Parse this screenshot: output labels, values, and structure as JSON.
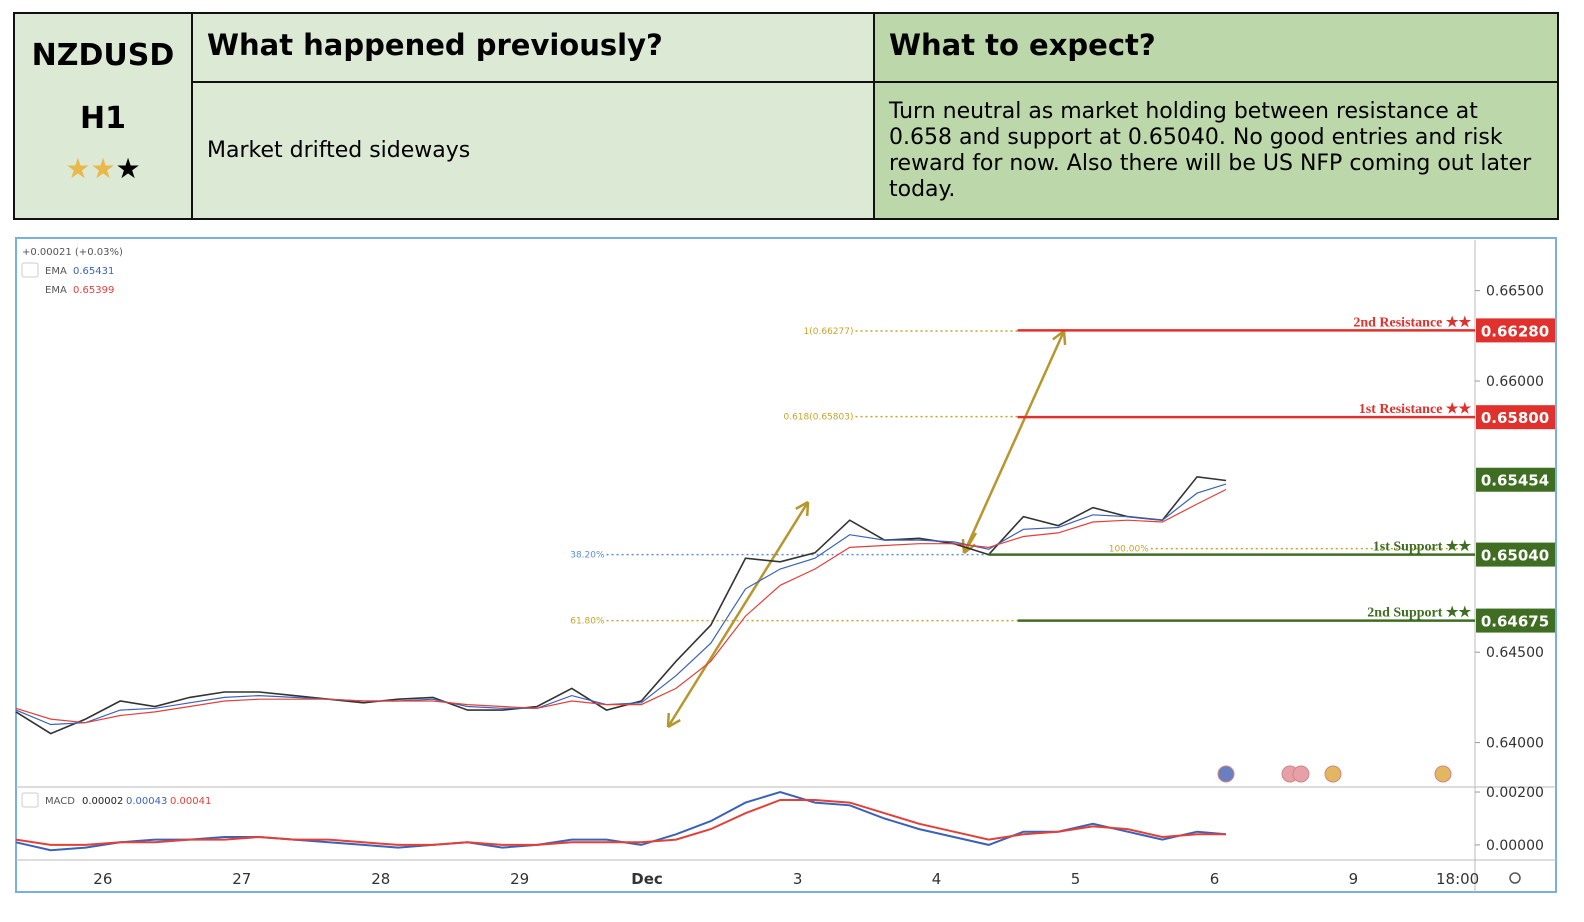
{
  "header": {
    "symbol": "NZDUSD",
    "timeframe": "H1",
    "rating": {
      "value": 2,
      "max": 3
    }
  },
  "table": {
    "columns": [
      "What happened previously?",
      "What to expect?"
    ],
    "cells": [
      "Market drifted sideways",
      "Turn neutral as market holding between resistance at 0.658 and support at 0.65040. No good entries and risk reward for now. Also there will be US NFP coming out later today."
    ]
  },
  "chart_data": [
    {
      "type": "line",
      "change_label": "+0.00021 (+0.03%)",
      "x": [
        0,
        6,
        12,
        18,
        24,
        30,
        36,
        42,
        48,
        54,
        60,
        66,
        72,
        78,
        84,
        90,
        96,
        102,
        108,
        114,
        120,
        126,
        132,
        138,
        144,
        150,
        156,
        162,
        168,
        174,
        180,
        186,
        192,
        198,
        204,
        209
      ],
      "xlim": [
        0,
        252
      ],
      "xticks": [
        {
          "value": 15,
          "label": "26"
        },
        {
          "value": 39,
          "label": "27"
        },
        {
          "value": 63,
          "label": "28"
        },
        {
          "value": 87,
          "label": "29"
        },
        {
          "value": 109,
          "label": "Dec"
        },
        {
          "value": 135,
          "label": "3"
        },
        {
          "value": 159,
          "label": "4"
        },
        {
          "value": 183,
          "label": "5"
        },
        {
          "value": 207,
          "label": "6"
        },
        {
          "value": 231,
          "label": "9"
        },
        {
          "value": 249,
          "label": "18:00"
        }
      ],
      "ylim": [
        0.6376,
        0.6678
      ],
      "yticks": [
        {
          "value": 0.64,
          "label": "0.64000"
        },
        {
          "value": 0.645,
          "label": "0.64500"
        },
        {
          "value": 0.66,
          "label": "0.66000"
        },
        {
          "value": 0.665,
          "label": "0.66500"
        }
      ],
      "series": [
        {
          "color": "#333333",
          "values": [
            0.6417,
            0.6405,
            0.6413,
            0.6423,
            0.642,
            0.6425,
            0.6428,
            0.6428,
            0.6426,
            0.6424,
            0.6422,
            0.6424,
            0.6425,
            0.6418,
            0.6418,
            0.642,
            0.643,
            0.6418,
            0.6423,
            0.6445,
            0.6465,
            0.6502,
            0.65,
            0.6505,
            0.6523,
            0.6512,
            0.6513,
            0.651,
            0.6504,
            0.6525,
            0.652,
            0.653,
            0.6525,
            0.6523,
            0.6547,
            0.6545
          ]
        },
        {
          "name": "EMA",
          "last": 0.65431,
          "color": "#3a63b8",
          "values": [
            0.6418,
            0.641,
            0.6411,
            0.6418,
            0.6419,
            0.6422,
            0.6425,
            0.6426,
            0.6425,
            0.6424,
            0.6423,
            0.6423,
            0.6424,
            0.642,
            0.6419,
            0.6419,
            0.6426,
            0.6421,
            0.6422,
            0.6437,
            0.6455,
            0.6485,
            0.6496,
            0.6502,
            0.6515,
            0.6512,
            0.6512,
            0.6511,
            0.6507,
            0.6518,
            0.6519,
            0.6526,
            0.6525,
            0.6523,
            0.6538,
            0.6543
          ]
        },
        {
          "name": "EMA",
          "last": 0.65399,
          "color": "#e3403a",
          "values": [
            0.6419,
            0.6413,
            0.6411,
            0.6415,
            0.6417,
            0.642,
            0.6423,
            0.6424,
            0.6424,
            0.6424,
            0.6423,
            0.6423,
            0.6423,
            0.6421,
            0.642,
            0.6419,
            0.6423,
            0.6421,
            0.6421,
            0.643,
            0.6445,
            0.647,
            0.6487,
            0.6496,
            0.6508,
            0.6509,
            0.651,
            0.651,
            0.6508,
            0.6514,
            0.6516,
            0.6522,
            0.6523,
            0.6522,
            0.6532,
            0.654
          ]
        }
      ],
      "last_price": 0.65454,
      "last_price_color": "#3f6e22",
      "levels": [
        {
          "name": "2nd Resistance ★★",
          "value": 0.6628,
          "value_label": "0.66280",
          "color": "#e0312d",
          "from": 173
        },
        {
          "name": "1st Resistance ★★",
          "value": 0.658,
          "value_label": "0.65800",
          "color": "#e0312d",
          "from": 173
        },
        {
          "name": "1st Support ★★",
          "value": 0.6504,
          "value_label": "0.65040",
          "color": "#3f6e22",
          "from": 168
        },
        {
          "name": "2nd Support ★★",
          "value": 0.64675,
          "color": "#3f6e22",
          "from": 173
        }
      ],
      "fib": [
        {
          "label": "1(0.66277)",
          "value": 0.66277,
          "color": "#c9a227",
          "from": 145,
          "to": 173
        },
        {
          "label": "0.618(0.65803)",
          "value": 0.65803,
          "color": "#c9a227",
          "from": 145,
          "to": 173
        },
        {
          "label": "38.20%",
          "value": 0.6504,
          "color": "#5b8fd1",
          "from": 102,
          "to": 168
        },
        {
          "label": "61.80%",
          "value": 0.64675,
          "color": "#c9a227",
          "from": 102,
          "to": 173
        },
        {
          "label": "100.00%",
          "value": 0.65073,
          "color": "#c9a227",
          "from": 196,
          "to": 250
        }
      ]
    },
    {
      "type": "line",
      "title": "MACD",
      "legend_values": [
        2e-05,
        0.00043,
        0.00041
      ],
      "ylim": [
        -0.00057,
        0.00219
      ],
      "yticks": [
        {
          "value": 0,
          "label": "0.00000"
        },
        {
          "value": 0.002,
          "label": "0.00200"
        }
      ],
      "x": [
        0,
        6,
        12,
        18,
        24,
        30,
        36,
        42,
        48,
        54,
        60,
        66,
        72,
        78,
        84,
        90,
        96,
        102,
        108,
        114,
        120,
        126,
        132,
        138,
        144,
        150,
        156,
        162,
        168,
        174,
        180,
        186,
        192,
        198,
        204,
        209
      ],
      "series": [
        {
          "color": "#3a63b8",
          "values": [
            0.0001,
            -0.0002,
            -0.0001,
            0.0001,
            0.0002,
            0.0002,
            0.0003,
            0.0003,
            0.0002,
            0.0001,
            0.0,
            -0.0001,
            0.0,
            0.0001,
            -0.0001,
            0.0,
            0.0002,
            0.0002,
            0.0,
            0.0004,
            0.0009,
            0.0016,
            0.002,
            0.0016,
            0.0015,
            0.001,
            0.0006,
            0.0003,
            0.0,
            0.0005,
            0.0005,
            0.0008,
            0.0005,
            0.0002,
            0.0005,
            0.0004
          ]
        },
        {
          "color": "#e3403a",
          "values": [
            0.0002,
            0.0,
            0.0,
            0.0001,
            0.0001,
            0.0002,
            0.0002,
            0.0003,
            0.0002,
            0.0002,
            0.0001,
            0.0,
            0.0,
            0.0001,
            0.0,
            0.0,
            0.0001,
            0.0001,
            0.0001,
            0.0002,
            0.0006,
            0.0012,
            0.0017,
            0.0017,
            0.0016,
            0.0012,
            0.0008,
            0.0005,
            0.0002,
            0.0004,
            0.0005,
            0.0007,
            0.0006,
            0.0003,
            0.0004,
            0.0004
          ]
        }
      ]
    }
  ]
}
